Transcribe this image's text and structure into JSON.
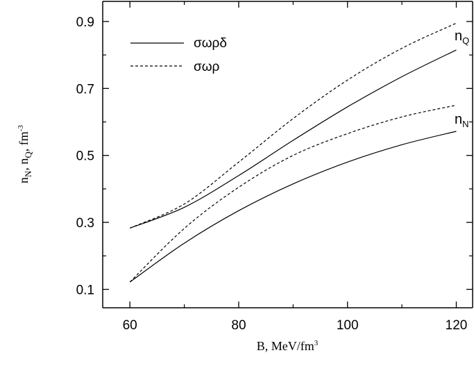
{
  "chart_data": {
    "type": "line",
    "title": "",
    "xlabel": "B, MeV/fm",
    "xlabel_sup": "3",
    "ylabel_parts": {
      "n": "n",
      "sub_N": "N",
      "sep": ", ",
      "sub_Q": "Q",
      "unit": "fm",
      "sup": "-3"
    },
    "xlim": [
      55,
      123
    ],
    "ylim": [
      0.045,
      0.96
    ],
    "x_ticks": [
      60,
      80,
      100,
      120
    ],
    "y_ticks": [
      0.1,
      0.3,
      0.5,
      0.7,
      0.9
    ],
    "y_tick_labels": [
      "0.1",
      "0.3",
      "0.5",
      "0.7",
      "0.9"
    ],
    "y_minor_ticks": [
      0.2,
      0.4,
      0.6,
      0.8
    ],
    "x_minor_ticks": [
      70,
      90,
      110
    ],
    "x": [
      60,
      70,
      80,
      90,
      100,
      110,
      120
    ],
    "series": [
      {
        "name": "σωρδ",
        "group": "n_Q",
        "style": "solid",
        "values": [
          0.283,
          0.345,
          0.44,
          0.545,
          0.645,
          0.735,
          0.815
        ]
      },
      {
        "name": "σωρ",
        "group": "n_Q",
        "style": "dashed",
        "values": [
          0.283,
          0.355,
          0.48,
          0.61,
          0.725,
          0.82,
          0.895
        ]
      },
      {
        "name": "σωρδ",
        "group": "n_N",
        "style": "solid",
        "values": [
          0.122,
          0.238,
          0.335,
          0.415,
          0.48,
          0.532,
          0.572
        ]
      },
      {
        "name": "σωρ",
        "group": "n_N",
        "style": "dashed",
        "values": [
          0.122,
          0.282,
          0.405,
          0.5,
          0.565,
          0.615,
          0.65
        ]
      }
    ],
    "legend": {
      "position": "top-left",
      "items": [
        {
          "label": "σωρδ",
          "style": "solid"
        },
        {
          "label": "σωρ",
          "style": "dashed"
        }
      ]
    },
    "annotations": {
      "nQ": {
        "main": "n",
        "sub": "Q"
      },
      "nN": {
        "main": "n",
        "sub": "N"
      }
    },
    "grid": false
  }
}
